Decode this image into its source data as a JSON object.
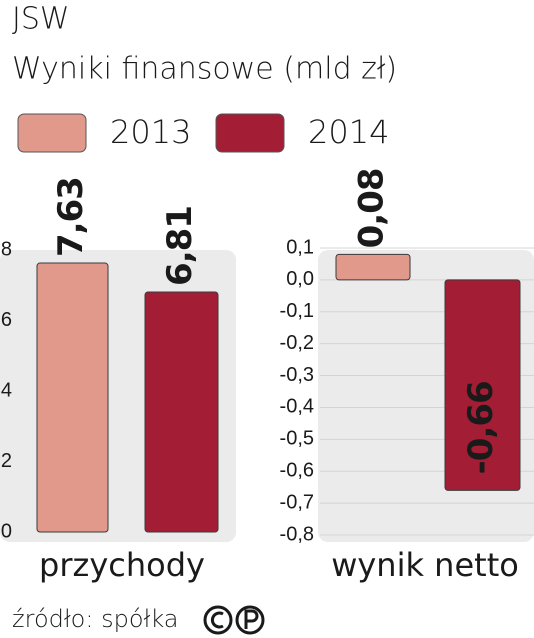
{
  "title": "JSW",
  "subtitle": "Wyniki finansowe (mld zł)",
  "legend": [
    {
      "name": "2013",
      "color": "#e0998a"
    },
    {
      "name": "2014",
      "color": "#a31d35"
    }
  ],
  "chart_data": [
    {
      "type": "bar",
      "xlabel": "przychody",
      "values": [
        7.63,
        6.81
      ],
      "value_labels": [
        "7,63",
        "6,81"
      ],
      "ylim": [
        0,
        8
      ],
      "yticks": [
        0,
        2,
        4,
        6,
        8
      ],
      "grid": false
    },
    {
      "type": "bar",
      "xlabel": "wynik netto",
      "values": [
        0.08,
        -0.66
      ],
      "value_labels": [
        "0,08",
        "-0,66"
      ],
      "ylim": [
        -0.8,
        0.1
      ],
      "yticks": [
        {
          "value": 0.1,
          "label": "0,1"
        },
        {
          "value": 0.0,
          "label": "0,0"
        },
        {
          "value": -0.1,
          "label": "-0,1"
        },
        {
          "value": -0.2,
          "label": "-0,2"
        },
        {
          "value": -0.3,
          "label": "-0,3"
        },
        {
          "value": -0.4,
          "label": "-0,4"
        },
        {
          "value": -0.5,
          "label": "-0,5"
        },
        {
          "value": -0.6,
          "label": "-0,6"
        },
        {
          "value": -0.7,
          "label": "-0,7"
        },
        {
          "value": -0.8,
          "label": "-0,8"
        }
      ],
      "grid": true
    }
  ],
  "source": "źródło: spółka"
}
